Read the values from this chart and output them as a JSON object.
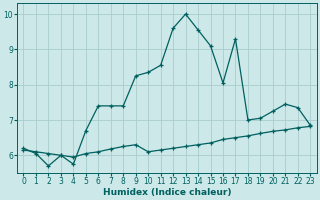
{
  "xlabel": "Humidex (Indice chaleur)",
  "background_color": "#cce8e8",
  "grid_color": "#aacccc",
  "line_color": "#006060",
  "xlim": [
    -0.5,
    23.5
  ],
  "ylim": [
    5.5,
    10.3
  ],
  "x_ticks": [
    0,
    1,
    2,
    3,
    4,
    5,
    6,
    7,
    8,
    9,
    10,
    11,
    12,
    13,
    14,
    15,
    16,
    17,
    18,
    19,
    20,
    21,
    22,
    23
  ],
  "y_ticks": [
    6,
    7,
    8,
    9,
    10
  ],
  "line1_x": [
    0,
    1,
    2,
    3,
    4,
    5,
    6,
    7,
    8,
    9,
    10,
    11,
    12,
    13,
    14,
    15,
    16,
    17,
    18,
    19,
    20,
    21,
    22,
    23
  ],
  "line1_y": [
    6.2,
    6.05,
    5.7,
    6.0,
    5.75,
    6.7,
    7.4,
    7.4,
    7.4,
    8.25,
    8.35,
    8.55,
    9.6,
    10.0,
    9.55,
    9.1,
    8.05,
    9.3,
    7.0,
    7.05,
    7.25,
    7.45,
    7.35,
    6.85
  ],
  "line2_x": [
    0,
    1,
    2,
    3,
    4,
    5,
    6,
    7,
    8,
    9,
    10,
    11,
    12,
    13,
    14,
    15,
    16,
    17,
    18,
    19,
    20,
    21,
    22,
    23
  ],
  "line2_y": [
    6.15,
    6.1,
    6.05,
    6.0,
    5.95,
    6.05,
    6.1,
    6.18,
    6.25,
    6.3,
    6.1,
    6.15,
    6.2,
    6.25,
    6.3,
    6.35,
    6.45,
    6.5,
    6.55,
    6.62,
    6.68,
    6.72,
    6.78,
    6.82
  ]
}
